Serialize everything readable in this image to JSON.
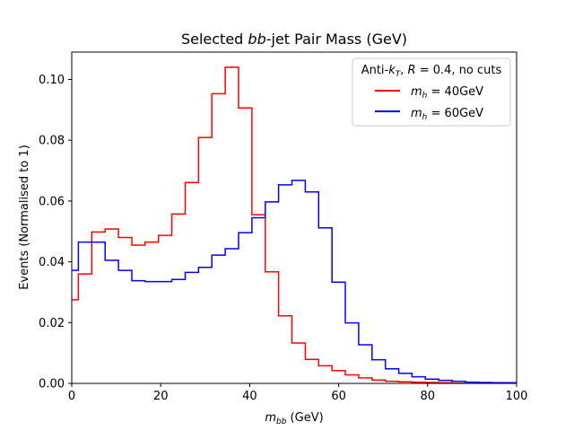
{
  "chart_data": {
    "type": "line",
    "drawstyle": "steps",
    "title": "Selected bb-jet Pair Mass (GeV)",
    "title_parts": {
      "before": "Selected ",
      "italic": "bb",
      "after": "-jet Pair Mass (GeV)"
    },
    "xlabel": "m_bb (GeV)",
    "xlabel_parts": {
      "var": "m",
      "sub": "bb",
      "unit": " (GeV)"
    },
    "ylabel": "Events (Normalised to 1)",
    "xlim": [
      0,
      100
    ],
    "ylim": [
      0,
      0.109
    ],
    "x_ticks": [
      0,
      20,
      40,
      60,
      80,
      100
    ],
    "y_ticks": [
      0.0,
      0.02,
      0.04,
      0.06,
      0.08,
      0.1
    ],
    "x_tick_labels": [
      "0",
      "20",
      "40",
      "60",
      "80",
      "100"
    ],
    "y_tick_labels": [
      "0.00",
      "0.02",
      "0.04",
      "0.06",
      "0.08",
      "0.10"
    ],
    "grid": false,
    "legend": {
      "placement": "top-right",
      "title": "Anti-kT, R = 0.4, no cuts",
      "title_parts": {
        "pre": "Anti-",
        "k": "k",
        "ksub": "T",
        "mid": ", ",
        "r": "R",
        "post": " = 0.4, no cuts"
      }
    },
    "bin_edges": [
      0,
      1.5,
      4.5,
      7.5,
      10.5,
      13.5,
      16.5,
      19.5,
      22.5,
      25.5,
      28.5,
      31.5,
      34.5,
      37.5,
      40.5,
      43.5,
      46.5,
      49.5,
      52.5,
      55.5,
      58.5,
      61.5,
      64.5,
      67.5,
      70.5,
      73.5,
      76.5,
      79.5,
      82.5,
      85.5,
      88.5,
      91.5,
      94.5,
      97.5,
      100
    ],
    "series": [
      {
        "name": "m_h = 40GeV",
        "label_parts": {
          "var": "m",
          "sub": "h",
          "eq": " = 40GeV"
        },
        "color": "#ff0000",
        "values": [
          0.0275,
          0.036,
          0.0498,
          0.0508,
          0.048,
          0.0455,
          0.0465,
          0.0487,
          0.0557,
          0.0661,
          0.0809,
          0.0953,
          0.104,
          0.0906,
          0.0555,
          0.0367,
          0.0222,
          0.0133,
          0.0079,
          0.0058,
          0.0042,
          0.0028,
          0.0018,
          0.0011,
          0.0007,
          0.0005,
          0.0004,
          0.0003,
          0.0002,
          0.0001,
          0.0001,
          0.0001,
          0.0001,
          0.0001
        ]
      },
      {
        "name": "m_h = 60GeV",
        "label_parts": {
          "var": "m",
          "sub": "h",
          "eq": " = 60GeV"
        },
        "color": "#0000ff",
        "values": [
          0.0372,
          0.0465,
          0.0465,
          0.0405,
          0.0372,
          0.0338,
          0.0335,
          0.0335,
          0.0342,
          0.0365,
          0.0382,
          0.0422,
          0.0443,
          0.0496,
          0.0545,
          0.0597,
          0.0653,
          0.0668,
          0.063,
          0.0512,
          0.0333,
          0.0199,
          0.0127,
          0.0078,
          0.0048,
          0.0033,
          0.0022,
          0.0014,
          0.001,
          0.0007,
          0.0004,
          0.0003,
          0.0002,
          0.0002
        ]
      }
    ]
  }
}
